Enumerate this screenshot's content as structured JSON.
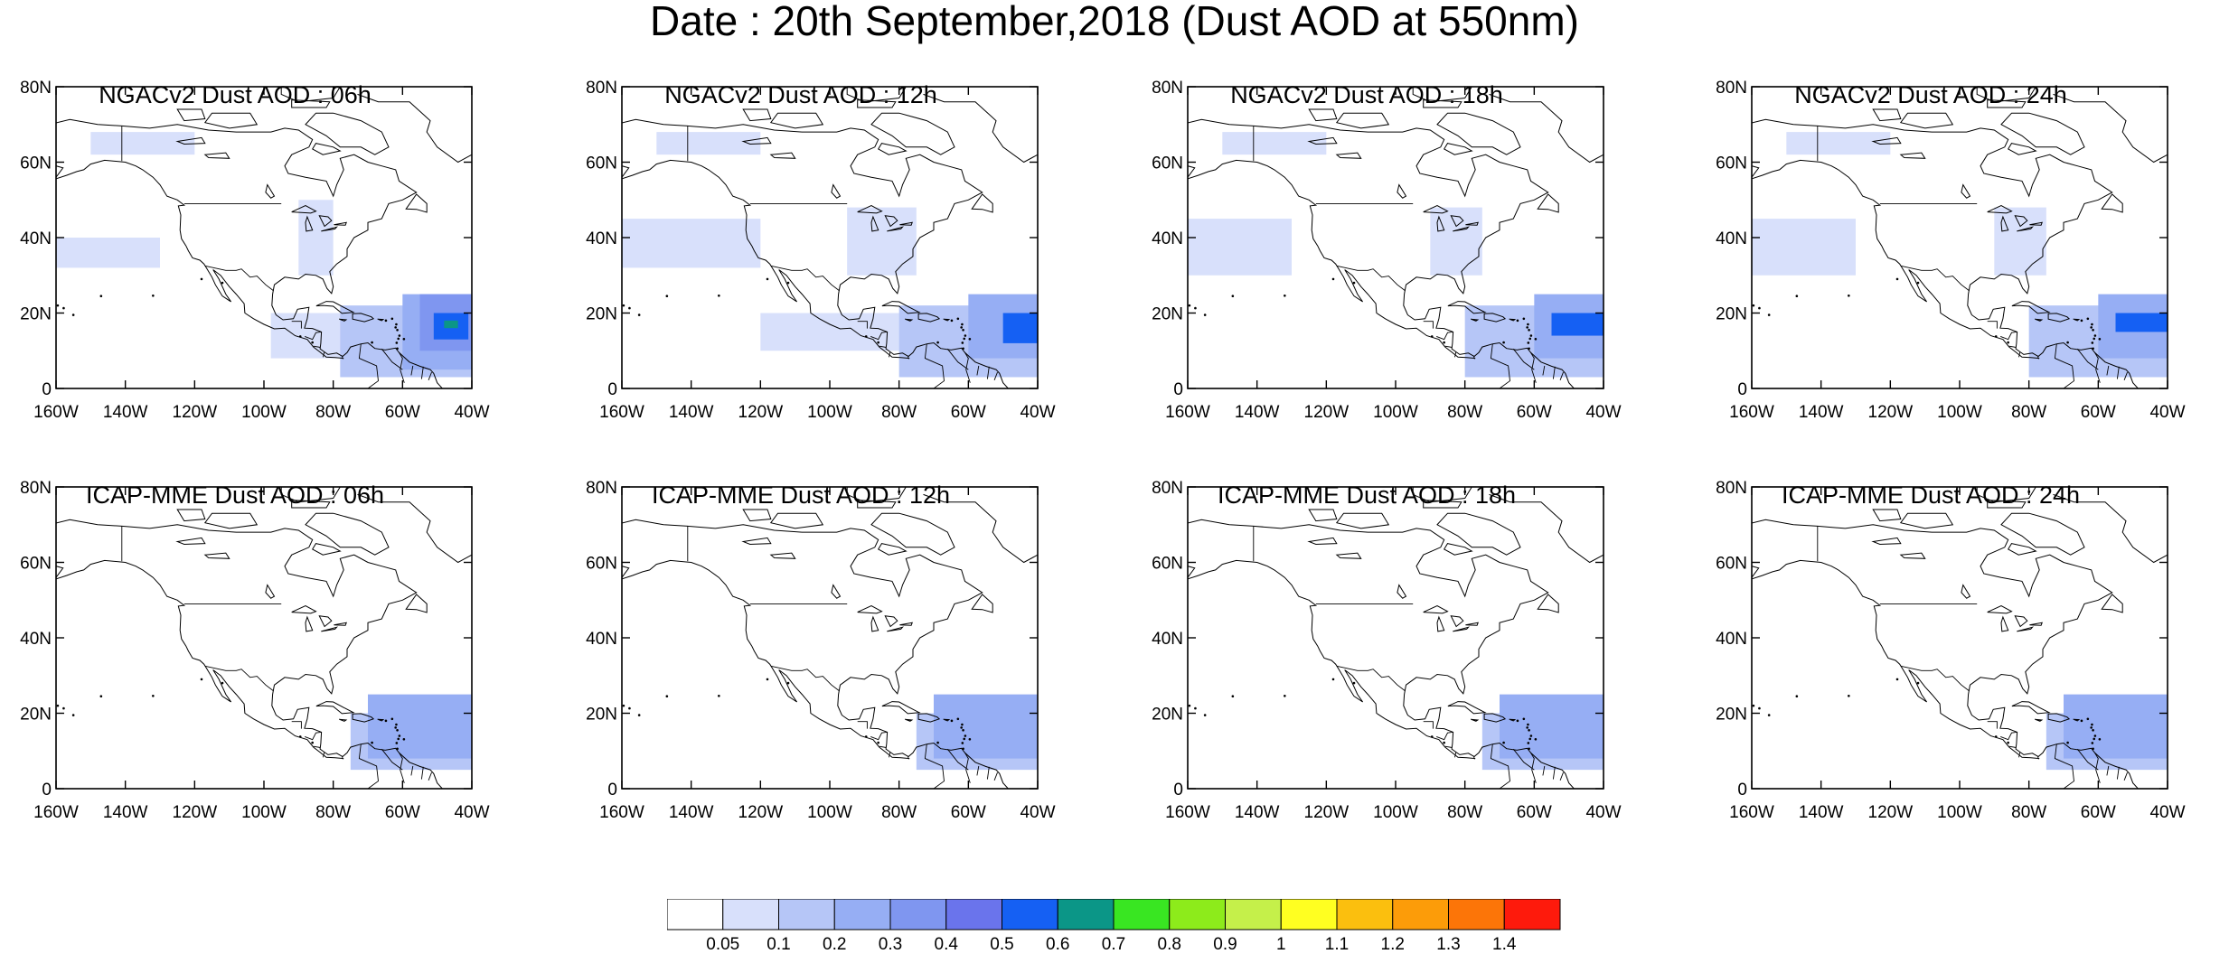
{
  "title": "Date : 20th September,2018 (Dust AOD at 550nm)",
  "lat_labels": [
    "0",
    "20N",
    "40N",
    "60N",
    "80N"
  ],
  "lon_labels": [
    "160W",
    "140W",
    "120W",
    "100W",
    "80W",
    "60W",
    "40W"
  ],
  "lat_values": [
    0,
    20,
    40,
    60,
    80
  ],
  "lon_values": [
    -160,
    -140,
    -120,
    -100,
    -80,
    -60,
    -40
  ],
  "map_extent": {
    "lon": [
      -160,
      -40
    ],
    "lat": [
      0,
      80
    ]
  },
  "panels": [
    {
      "title": "NGACv2 Dust AOD : 06h",
      "plumes": [
        {
          "lon": [
            -55,
            -40
          ],
          "lat": [
            10,
            25
          ],
          "aod": 0.3
        },
        {
          "lon": [
            -60,
            -40
          ],
          "lat": [
            5,
            25
          ],
          "aod": 0.2
        },
        {
          "lon": [
            -78,
            -40
          ],
          "lat": [
            3,
            22
          ],
          "aod": 0.1
        },
        {
          "lon": [
            -98,
            -60
          ],
          "lat": [
            8,
            20
          ],
          "aod": 0.05
        },
        {
          "lon": [
            -51,
            -41
          ],
          "lat": [
            13,
            20
          ],
          "aod": 0.5
        },
        {
          "lon": [
            -48,
            -44
          ],
          "lat": [
            16,
            18
          ],
          "aod": 0.6
        },
        {
          "lon": [
            -150,
            -120
          ],
          "lat": [
            62,
            68
          ],
          "aod": 0.05
        },
        {
          "lon": [
            -160,
            -130
          ],
          "lat": [
            32,
            40
          ],
          "aod": 0.05
        },
        {
          "lon": [
            -90,
            -80
          ],
          "lat": [
            30,
            50
          ],
          "aod": 0.05
        }
      ]
    },
    {
      "title": "NGACv2 Dust AOD : 12h",
      "plumes": [
        {
          "lon": [
            -60,
            -40
          ],
          "lat": [
            8,
            25
          ],
          "aod": 0.2
        },
        {
          "lon": [
            -80,
            -40
          ],
          "lat": [
            3,
            22
          ],
          "aod": 0.1
        },
        {
          "lon": [
            -50,
            -40
          ],
          "lat": [
            12,
            20
          ],
          "aod": 0.5
        },
        {
          "lon": [
            -120,
            -60
          ],
          "lat": [
            10,
            20
          ],
          "aod": 0.05
        },
        {
          "lon": [
            -150,
            -120
          ],
          "lat": [
            62,
            68
          ],
          "aod": 0.05
        },
        {
          "lon": [
            -160,
            -120
          ],
          "lat": [
            32,
            45
          ],
          "aod": 0.05
        },
        {
          "lon": [
            -95,
            -75
          ],
          "lat": [
            30,
            48
          ],
          "aod": 0.05
        }
      ]
    },
    {
      "title": "NGACv2 Dust AOD : 18h",
      "plumes": [
        {
          "lon": [
            -60,
            -40
          ],
          "lat": [
            8,
            25
          ],
          "aod": 0.2
        },
        {
          "lon": [
            -80,
            -40
          ],
          "lat": [
            3,
            22
          ],
          "aod": 0.1
        },
        {
          "lon": [
            -55,
            -40
          ],
          "lat": [
            14,
            20
          ],
          "aod": 0.5
        },
        {
          "lon": [
            -150,
            -120
          ],
          "lat": [
            62,
            68
          ],
          "aod": 0.05
        },
        {
          "lon": [
            -160,
            -130
          ],
          "lat": [
            30,
            45
          ],
          "aod": 0.05
        },
        {
          "lon": [
            -90,
            -75
          ],
          "lat": [
            30,
            48
          ],
          "aod": 0.05
        }
      ]
    },
    {
      "title": "NGACv2 Dust AOD : 24h",
      "plumes": [
        {
          "lon": [
            -60,
            -40
          ],
          "lat": [
            8,
            25
          ],
          "aod": 0.2
        },
        {
          "lon": [
            -80,
            -40
          ],
          "lat": [
            3,
            22
          ],
          "aod": 0.1
        },
        {
          "lon": [
            -55,
            -40
          ],
          "lat": [
            15,
            20
          ],
          "aod": 0.5
        },
        {
          "lon": [
            -150,
            -120
          ],
          "lat": [
            62,
            68
          ],
          "aod": 0.05
        },
        {
          "lon": [
            -160,
            -130
          ],
          "lat": [
            30,
            45
          ],
          "aod": 0.05
        },
        {
          "lon": [
            -90,
            -75
          ],
          "lat": [
            30,
            48
          ],
          "aod": 0.05
        }
      ]
    },
    {
      "title": "ICAP-MME Dust AOD : 06h",
      "plumes": [
        {
          "lon": [
            -70,
            -40
          ],
          "lat": [
            8,
            25
          ],
          "aod": 0.2
        },
        {
          "lon": [
            -75,
            -40
          ],
          "lat": [
            5,
            20
          ],
          "aod": 0.1
        }
      ]
    },
    {
      "title": "ICAP-MME Dust AOD : 12h",
      "plumes": [
        {
          "lon": [
            -70,
            -40
          ],
          "lat": [
            8,
            25
          ],
          "aod": 0.2
        },
        {
          "lon": [
            -75,
            -40
          ],
          "lat": [
            5,
            20
          ],
          "aod": 0.1
        }
      ]
    },
    {
      "title": "ICAP-MME Dust AOD : 18h",
      "plumes": [
        {
          "lon": [
            -70,
            -40
          ],
          "lat": [
            8,
            25
          ],
          "aod": 0.2
        },
        {
          "lon": [
            -75,
            -40
          ],
          "lat": [
            5,
            20
          ],
          "aod": 0.1
        }
      ]
    },
    {
      "title": "ICAP-MME Dust AOD : 24h",
      "plumes": [
        {
          "lon": [
            -70,
            -40
          ],
          "lat": [
            8,
            25
          ],
          "aod": 0.2
        },
        {
          "lon": [
            -75,
            -40
          ],
          "lat": [
            5,
            20
          ],
          "aod": 0.1
        }
      ]
    }
  ],
  "colorbar": {
    "labels": [
      "0.05",
      "0.1",
      "0.2",
      "0.3",
      "0.4",
      "0.5",
      "0.6",
      "0.7",
      "0.8",
      "0.9",
      "1",
      "1.1",
      "1.2",
      "1.3",
      "1.4"
    ],
    "colors": [
      "#ffffff",
      "#d8e0fb",
      "#b6c6f7",
      "#96aef4",
      "#7f96f0",
      "#6a74ec",
      "#1560f3",
      "#0b9687",
      "#39e622",
      "#8deb1b",
      "#c5f04a",
      "#ffff21",
      "#fbbf0e",
      "#fc9c09",
      "#fc7508",
      "#fe1a0c"
    ]
  }
}
